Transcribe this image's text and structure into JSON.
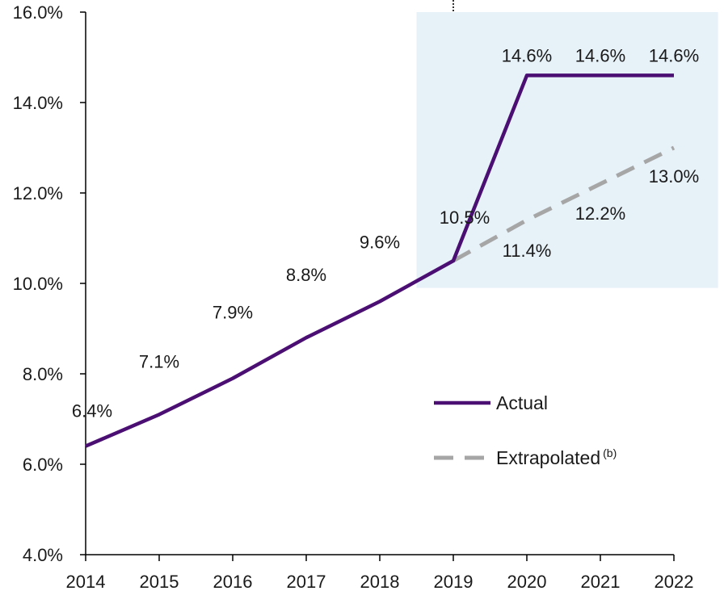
{
  "chart_data": {
    "type": "line",
    "x": [
      2014,
      2015,
      2016,
      2017,
      2018,
      2019,
      2020,
      2021,
      2022
    ],
    "ylim": [
      4.0,
      16.0
    ],
    "yticks": [
      4.0,
      6.0,
      8.0,
      10.0,
      12.0,
      14.0,
      16.0
    ],
    "y_tick_labels": [
      "4.0%",
      "6.0%",
      "8.0%",
      "10.0%",
      "12.0%",
      "14.0%",
      "16.0%"
    ],
    "x_tick_labels": [
      "2014",
      "2015",
      "2016",
      "2017",
      "2018",
      "2019",
      "2020",
      "2021",
      "2022"
    ],
    "grid": false,
    "legend_position": "right-middle",
    "highlight_region": {
      "x_from": 2018.5,
      "x_to": 2022.6,
      "y_from": 9.9,
      "y_to": 16.0,
      "color": "#e6f1f8"
    },
    "series": [
      {
        "name": "Actual",
        "style": "solid",
        "color": "#4b0f73",
        "x": [
          2014,
          2015,
          2016,
          2017,
          2018,
          2019,
          2020,
          2021,
          2022
        ],
        "values": [
          6.4,
          7.1,
          7.9,
          8.8,
          9.6,
          10.5,
          14.6,
          14.6,
          14.6
        ],
        "labels": [
          "6.4%",
          "7.1%",
          "7.9%",
          "8.8%",
          "9.6%",
          "10.5%",
          "14.6%",
          "14.6%",
          "14.6%"
        ]
      },
      {
        "name": "Extrapolated",
        "name_superscript": "(b)",
        "style": "dashed",
        "color": "#a6a6a6",
        "x": [
          2019,
          2020,
          2021,
          2022
        ],
        "values": [
          10.5,
          11.4,
          12.2,
          13.0
        ],
        "labels": [
          "",
          "11.4%",
          "12.2%",
          "13.0%"
        ]
      }
    ]
  }
}
